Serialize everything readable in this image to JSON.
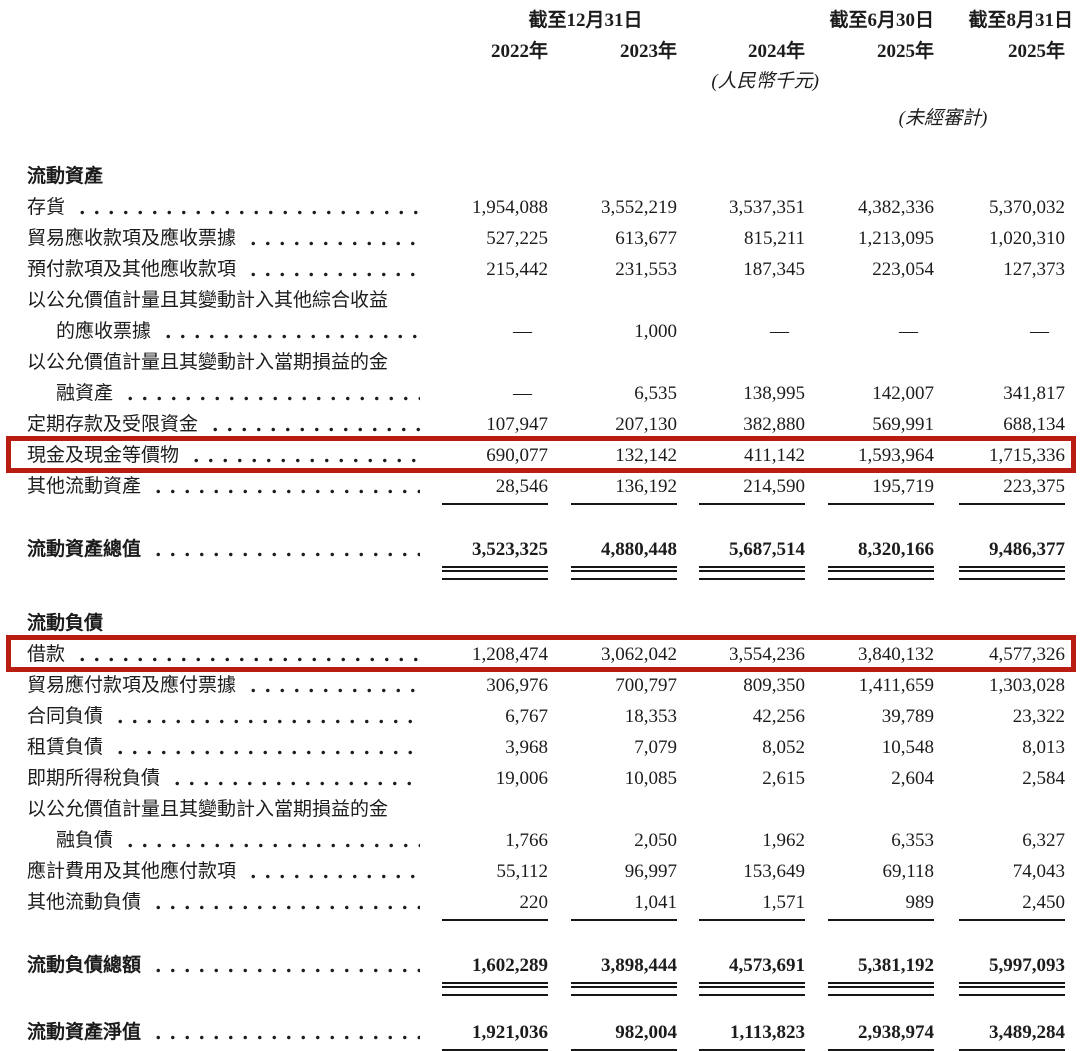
{
  "highlight_color": "#b91c10",
  "header": {
    "period_dec31": "截至12月31日",
    "period_jun30": "截至6月30日",
    "period_aug31": "截至8月31日",
    "years": [
      "2022年",
      "2023年",
      "2024年",
      "2025年",
      "2025年"
    ],
    "unit_note": "(人民幣千元)",
    "unaudited_note": "(未經審計)"
  },
  "sections": [
    {
      "title": "流動資產",
      "rows": [
        {
          "label": "存貨",
          "values": [
            "1,954,088",
            "3,552,219",
            "3,537,351",
            "4,382,336",
            "5,370,032"
          ]
        },
        {
          "label": "貿易應收款項及應收票據",
          "values": [
            "527,225",
            "613,677",
            "815,211",
            "1,213,095",
            "1,020,310"
          ]
        },
        {
          "label": "預付款項及其他應收款項",
          "values": [
            "215,442",
            "231,553",
            "187,345",
            "223,054",
            "127,373"
          ]
        },
        {
          "label": "以公允價值計量且其變動計入其他綜合收益",
          "wrap": true
        },
        {
          "label": "的應收票據",
          "indent": true,
          "values": [
            "—",
            "1,000",
            "—",
            "—",
            "—"
          ]
        },
        {
          "label": "以公允價值計量且其變動計入當期損益的金",
          "wrap": true
        },
        {
          "label": "融資產",
          "indent": true,
          "values": [
            "—",
            "6,535",
            "138,995",
            "142,007",
            "341,817"
          ]
        },
        {
          "label": "定期存款及受限資金",
          "values": [
            "107,947",
            "207,130",
            "382,880",
            "569,991",
            "688,134"
          ]
        },
        {
          "label": "現金及現金等價物",
          "highlight": true,
          "values": [
            "690,077",
            "132,142",
            "411,142",
            "1,593,964",
            "1,715,336"
          ]
        },
        {
          "label": "其他流動資產",
          "underline": true,
          "values": [
            "28,546",
            "136,192",
            "214,590",
            "195,719",
            "223,375"
          ]
        }
      ],
      "total": {
        "label": "流動資產總值",
        "values": [
          "3,523,325",
          "4,880,448",
          "5,687,514",
          "8,320,166",
          "9,486,377"
        ]
      }
    },
    {
      "title": "流動負債",
      "rows": [
        {
          "label": "借款",
          "highlight": true,
          "values": [
            "1,208,474",
            "3,062,042",
            "3,554,236",
            "3,840,132",
            "4,577,326"
          ]
        },
        {
          "label": "貿易應付款項及應付票據",
          "values": [
            "306,976",
            "700,797",
            "809,350",
            "1,411,659",
            "1,303,028"
          ]
        },
        {
          "label": "合同負債",
          "values": [
            "6,767",
            "18,353",
            "42,256",
            "39,789",
            "23,322"
          ]
        },
        {
          "label": "租賃負債",
          "values": [
            "3,968",
            "7,079",
            "8,052",
            "10,548",
            "8,013"
          ]
        },
        {
          "label": "即期所得稅負債",
          "values": [
            "19,006",
            "10,085",
            "2,615",
            "2,604",
            "2,584"
          ]
        },
        {
          "label": "以公允價值計量且其變動計入當期損益的金",
          "wrap": true
        },
        {
          "label": "融負債",
          "indent": true,
          "values": [
            "1,766",
            "2,050",
            "1,962",
            "6,353",
            "6,327"
          ]
        },
        {
          "label": "應計費用及其他應付款項",
          "values": [
            "55,112",
            "96,997",
            "153,649",
            "69,118",
            "74,043"
          ]
        },
        {
          "label": "其他流動負債",
          "underline": true,
          "values": [
            "220",
            "1,041",
            "1,571",
            "989",
            "2,450"
          ]
        }
      ],
      "total": {
        "label": "流動負債總額",
        "values": [
          "1,602,289",
          "3,898,444",
          "4,573,691",
          "5,381,192",
          "5,997,093"
        ]
      }
    }
  ],
  "net_row": {
    "label": "流動資產淨值",
    "values": [
      "1,921,036",
      "982,004",
      "1,113,823",
      "2,938,974",
      "3,489,284"
    ]
  }
}
